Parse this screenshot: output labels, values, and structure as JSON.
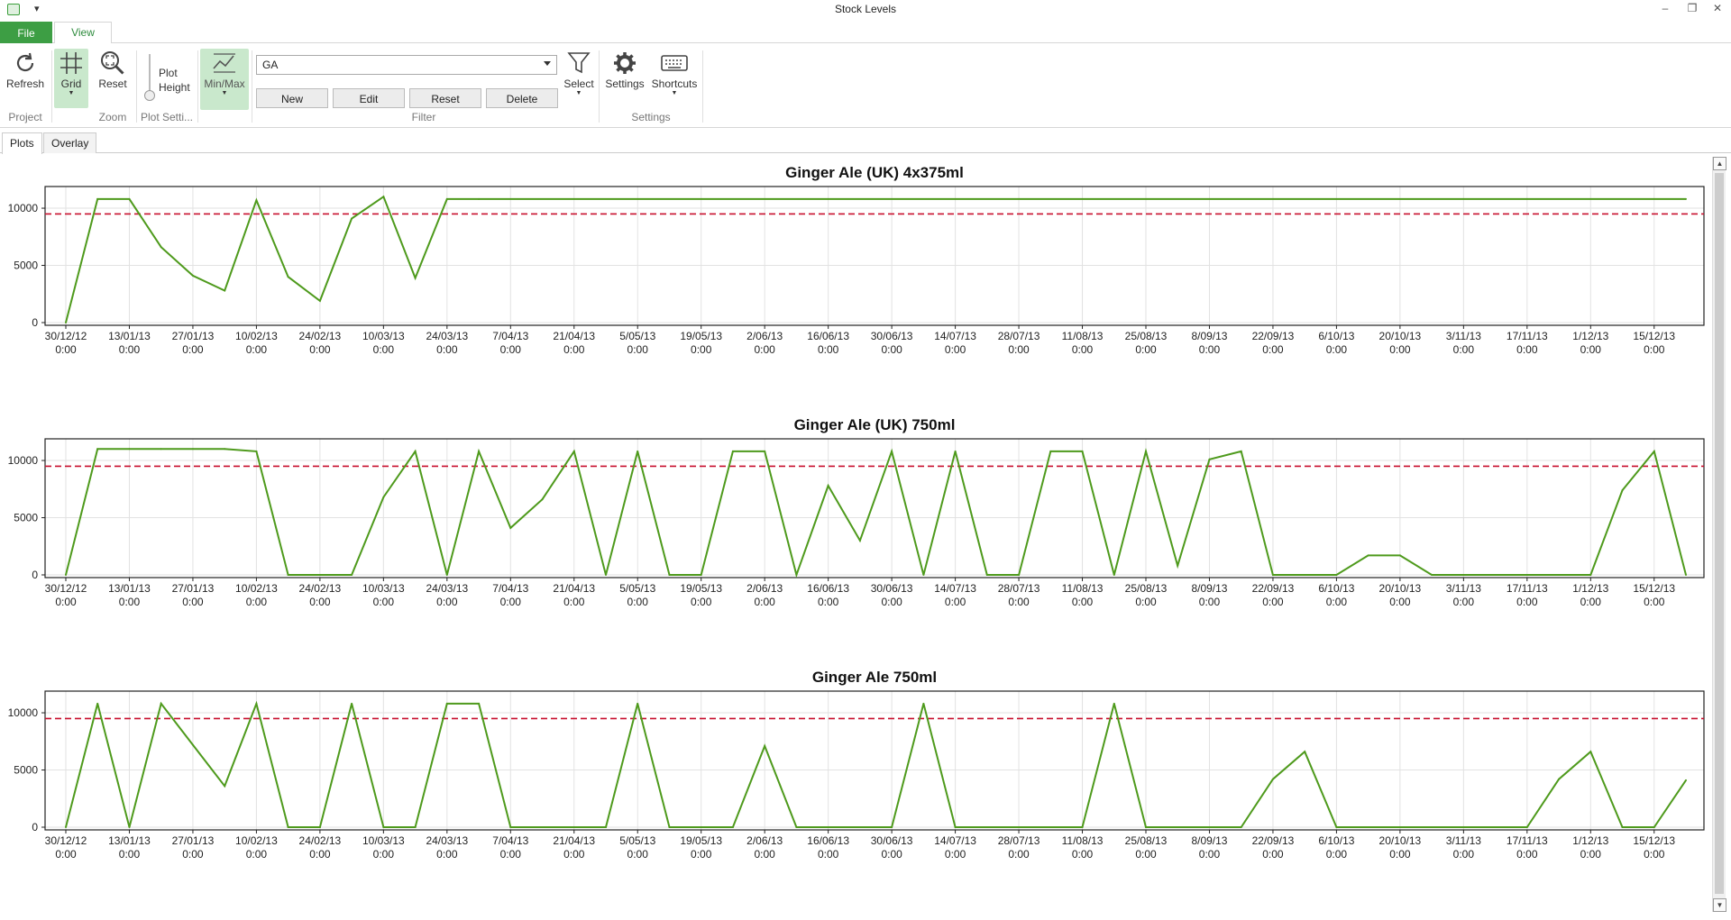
{
  "window": {
    "title": "Stock Levels"
  },
  "ribbon_tabs": {
    "file": "File",
    "view": "View"
  },
  "ribbon": {
    "refresh_label": "Refresh",
    "grid_label": "Grid",
    "reset_zoom_label": "Reset",
    "plot_height_label_1": "Plot",
    "plot_height_label_2": "Height",
    "minmax_label": "Min/Max",
    "filter_value": "GA",
    "new_label": "New",
    "edit_label": "Edit",
    "reset_filter_label": "Reset",
    "delete_label": "Delete",
    "select_label": "Select",
    "settings_label": "Settings",
    "shortcuts_label": "Shortcuts",
    "groups": {
      "project": "Project",
      "zoom": "Zoom",
      "plot_settings": "Plot Setti...",
      "filter": "Filter",
      "settings": "Settings"
    }
  },
  "plot_tabs": {
    "plots": "Plots",
    "overlay": "Overlay"
  },
  "icons": [
    "refresh-icon",
    "grid-icon",
    "zoom-reset-icon",
    "plot-height-slider-icon",
    "minmax-icon",
    "funnel-icon",
    "gear-icon",
    "keyboard-icon"
  ],
  "colors": {
    "accent": "#3d9e44",
    "series": "#4e9a1c",
    "threshold": "#c8102e"
  },
  "chart_data": [
    {
      "type": "line",
      "title": "Ginger Ale (UK) 4x375ml",
      "xlabel": "",
      "ylabel": "",
      "ylim": [
        0,
        11500
      ],
      "yticks": [
        0,
        5000,
        10000
      ],
      "xtick_labels": [
        "30/12/12",
        "13/01/13",
        "27/01/13",
        "10/02/13",
        "24/02/13",
        "10/03/13",
        "24/03/13",
        "7/04/13",
        "21/04/13",
        "5/05/13",
        "19/05/13",
        "2/06/13",
        "16/06/13",
        "30/06/13",
        "14/07/13",
        "28/07/13",
        "11/08/13",
        "25/08/13",
        "8/09/13",
        "22/09/13",
        "6/10/13",
        "20/10/13",
        "3/11/13",
        "17/11/13",
        "1/12/13",
        "15/12/13"
      ],
      "xtick_time": "0:00",
      "grid": true,
      "threshold": 9500,
      "x": [
        "30/12/12",
        "6/01/13",
        "13/01/13",
        "20/01/13",
        "27/01/13",
        "3/02/13",
        "10/02/13",
        "17/02/13",
        "24/02/13",
        "3/03/13",
        "10/03/13",
        "17/03/13",
        "24/03/13",
        "31/03/13",
        "22/12/13"
      ],
      "values": [
        0,
        10800,
        10800,
        6600,
        4100,
        2800,
        10700,
        4000,
        1900,
        9100,
        11000,
        3900,
        10800,
        10800,
        10800
      ]
    },
    {
      "type": "line",
      "title": "Ginger Ale (UK) 750ml",
      "xlabel": "",
      "ylabel": "",
      "ylim": [
        0,
        11500
      ],
      "yticks": [
        0,
        5000,
        10000
      ],
      "xtick_labels": [
        "30/12/12",
        "13/01/13",
        "27/01/13",
        "10/02/13",
        "24/02/13",
        "10/03/13",
        "24/03/13",
        "7/04/13",
        "21/04/13",
        "5/05/13",
        "19/05/13",
        "2/06/13",
        "16/06/13",
        "30/06/13",
        "14/07/13",
        "28/07/13",
        "11/08/13",
        "25/08/13",
        "8/09/13",
        "22/09/13",
        "6/10/13",
        "20/10/13",
        "3/11/13",
        "17/11/13",
        "1/12/13",
        "15/12/13"
      ],
      "xtick_time": "0:00",
      "grid": true,
      "threshold": 9500,
      "x": [
        "30/12/12",
        "6/01/13",
        "13/01/13",
        "20/01/13",
        "27/01/13",
        "3/02/13",
        "10/02/13",
        "17/02/13",
        "24/02/13",
        "3/03/13",
        "10/03/13",
        "17/03/13",
        "24/03/13",
        "31/03/13",
        "7/04/13",
        "14/04/13",
        "21/04/13",
        "28/04/13",
        "5/05/13",
        "12/05/13",
        "19/05/13",
        "26/05/13",
        "2/06/13",
        "9/06/13",
        "16/06/13",
        "23/06/13",
        "30/06/13",
        "7/07/13",
        "14/07/13",
        "21/07/13",
        "28/07/13",
        "4/08/13",
        "11/08/13",
        "18/08/13",
        "25/08/13",
        "1/09/13",
        "8/09/13",
        "15/09/13",
        "22/09/13",
        "29/09/13",
        "6/10/13",
        "13/10/13",
        "20/10/13",
        "27/10/13",
        "3/11/13",
        "10/11/13",
        "17/11/13",
        "24/11/13",
        "1/12/13",
        "8/12/13",
        "15/12/13",
        "22/12/13"
      ],
      "values": [
        0,
        11000,
        11000,
        11000,
        11000,
        11000,
        10800,
        0,
        0,
        0,
        6800,
        10800,
        0,
        10800,
        4100,
        6600,
        10800,
        0,
        10800,
        0,
        0,
        10800,
        10800,
        0,
        7800,
        3000,
        10800,
        0,
        10800,
        0,
        0,
        10800,
        10800,
        0,
        10800,
        800,
        10100,
        10800,
        0,
        0,
        0,
        1700,
        1700,
        0,
        0,
        0,
        0,
        0,
        0,
        7400,
        10800,
        0
      ]
    },
    {
      "type": "line",
      "title": "Ginger Ale 750ml",
      "xlabel": "",
      "ylabel": "",
      "ylim": [
        0,
        11500
      ],
      "yticks": [
        0,
        5000,
        10000
      ],
      "xtick_labels": [
        "30/12/12",
        "13/01/13",
        "27/01/13",
        "10/02/13",
        "24/02/13",
        "10/03/13",
        "24/03/13",
        "7/04/13",
        "21/04/13",
        "5/05/13",
        "19/05/13",
        "2/06/13",
        "16/06/13",
        "30/06/13",
        "14/07/13",
        "28/07/13",
        "11/08/13",
        "25/08/13",
        "8/09/13",
        "22/09/13",
        "6/10/13",
        "20/10/13",
        "3/11/13",
        "17/11/13",
        "1/12/13",
        "15/12/13"
      ],
      "xtick_time": "0:00",
      "grid": true,
      "threshold": 9500,
      "x": [
        "30/12/12",
        "6/01/13",
        "13/01/13",
        "20/01/13",
        "27/01/13",
        "3/02/13",
        "10/02/13",
        "17/02/13",
        "24/02/13",
        "3/03/13",
        "10/03/13",
        "17/03/13",
        "24/03/13",
        "31/03/13",
        "7/04/13",
        "14/04/13",
        "21/04/13",
        "28/04/13",
        "5/05/13",
        "12/05/13",
        "19/05/13",
        "26/05/13",
        "2/06/13",
        "9/06/13",
        "16/06/13",
        "23/06/13",
        "30/06/13",
        "7/07/13",
        "14/07/13",
        "21/07/13",
        "28/07/13",
        "4/08/13",
        "11/08/13",
        "18/08/13",
        "25/08/13",
        "1/09/13",
        "8/09/13",
        "15/09/13",
        "22/09/13",
        "29/09/13",
        "6/10/13",
        "13/10/13",
        "20/10/13",
        "27/10/13",
        "3/11/13",
        "10/11/13",
        "17/11/13",
        "24/11/13",
        "1/12/13",
        "8/12/13",
        "15/12/13",
        "22/12/13"
      ],
      "values": [
        0,
        10800,
        0,
        10800,
        7200,
        3600,
        10800,
        0,
        0,
        10800,
        0,
        0,
        10800,
        10800,
        0,
        0,
        0,
        0,
        10800,
        0,
        0,
        0,
        7100,
        0,
        0,
        0,
        0,
        10800,
        0,
        0,
        0,
        0,
        0,
        10800,
        0,
        0,
        0,
        0,
        4200,
        6600,
        0,
        0,
        0,
        0,
        0,
        0,
        0,
        4200,
        6600,
        0,
        0,
        4100
      ]
    }
  ]
}
